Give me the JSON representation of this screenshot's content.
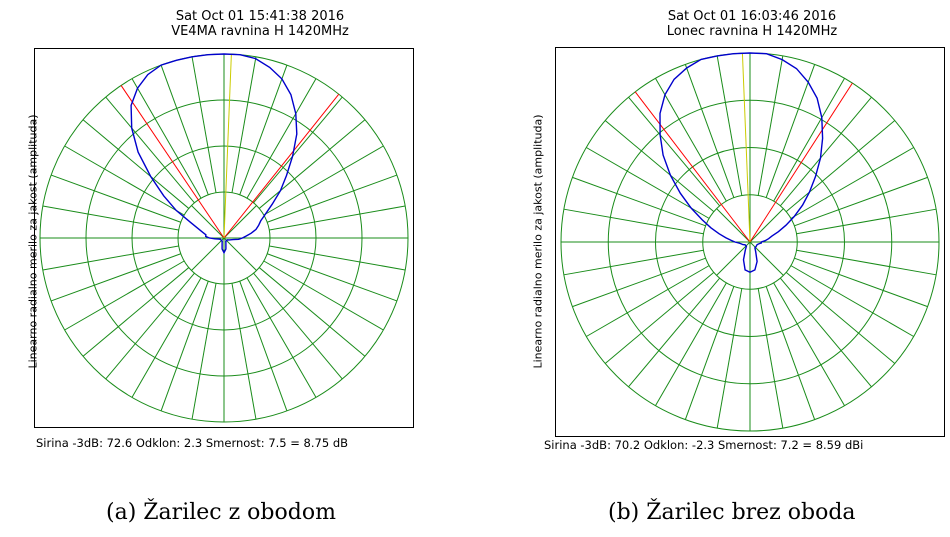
{
  "chart_data": [
    {
      "type": "polar",
      "title_line1": "Sat Oct 01 15:41:38 2016",
      "title_line2": "VE4MA ravnina H 1420MHz",
      "ylabel": "Linearno radialno merilo za jakost (amplituda)",
      "stats": "Sirina -3dB: 72.6    Odklon: 2.3    Smernost:   7.5 =  8.75 dB",
      "beamwidth_deg": 72.6,
      "offset_deg": 2.3,
      "directivity": 7.5,
      "directivity_db": 8.75,
      "caption": "(a) Žarilec z obodom",
      "rings": 4,
      "spokes_deg": 10,
      "colors": {
        "grid": "#1a8c1a",
        "pattern": "#0000cc",
        "beam": "#ff0000",
        "center": "#cccc00"
      },
      "pattern": {
        "angles": [
          -180,
          -170,
          -160,
          -150,
          -140,
          -130,
          -120,
          -110,
          -100,
          -95,
          -90,
          -85,
          -80,
          -75,
          -70,
          -65,
          -60,
          -55,
          -50,
          -45,
          -40,
          -35,
          -30,
          -25,
          -20,
          -15,
          -10,
          -5,
          0,
          5,
          10,
          15,
          20,
          25,
          30,
          35,
          40,
          45,
          50,
          55,
          60,
          65,
          70,
          75,
          80,
          85,
          90,
          95,
          100,
          110,
          120,
          130,
          140,
          150,
          160,
          170,
          180
        ],
        "values": [
          0.08,
          0.06,
          0.03,
          0.02,
          0.02,
          0.02,
          0.02,
          0.02,
          0.03,
          0.05,
          0.08,
          0.1,
          0.1,
          0.12,
          0.15,
          0.2,
          0.3,
          0.4,
          0.52,
          0.66,
          0.78,
          0.88,
          0.94,
          0.98,
          1.0,
          1.0,
          1.0,
          1.0,
          1.0,
          1.0,
          0.99,
          0.96,
          0.92,
          0.86,
          0.78,
          0.69,
          0.58,
          0.48,
          0.4,
          0.32,
          0.26,
          0.22,
          0.2,
          0.18,
          0.15,
          0.12,
          0.1,
          0.08,
          0.05,
          0.03,
          0.02,
          0.02,
          0.02,
          0.02,
          0.03,
          0.06,
          0.08
        ]
      }
    },
    {
      "type": "polar",
      "title_line1": "Sat Oct 01 16:03:46 2016",
      "title_line2": "Lonec ravnina H 1420MHz",
      "ylabel": "Linearno radialno merilo za jakost (amplituda)",
      "stats": "Sirina -3dB: 70.2    Odklon: -2.3    Smernost:   7.2 =  8.59 dBi",
      "beamwidth_deg": 70.2,
      "offset_deg": -2.3,
      "directivity": 7.2,
      "directivity_db": 8.59,
      "caption": "(b) Žarilec brez oboda",
      "rings": 4,
      "spokes_deg": 10,
      "colors": {
        "grid": "#1a8c1a",
        "pattern": "#0000cc",
        "beam": "#ff0000",
        "center": "#cccc00"
      },
      "pattern": {
        "angles": [
          -180,
          -170,
          -160,
          -150,
          -140,
          -130,
          -120,
          -110,
          -100,
          -95,
          -90,
          -85,
          -80,
          -75,
          -70,
          -65,
          -60,
          -55,
          -50,
          -45,
          -40,
          -35,
          -30,
          -25,
          -20,
          -15,
          -10,
          -5,
          0,
          5,
          10,
          15,
          20,
          25,
          30,
          35,
          40,
          45,
          50,
          55,
          60,
          65,
          70,
          75,
          80,
          85,
          90,
          95,
          100,
          110,
          120,
          130,
          140,
          150,
          160,
          170,
          180
        ],
        "values": [
          0.16,
          0.15,
          0.1,
          0.05,
          0.03,
          0.03,
          0.03,
          0.04,
          0.05,
          0.06,
          0.08,
          0.1,
          0.13,
          0.17,
          0.22,
          0.28,
          0.36,
          0.45,
          0.55,
          0.65,
          0.74,
          0.83,
          0.9,
          0.95,
          0.98,
          1.0,
          1.0,
          1.0,
          1.0,
          1.0,
          0.98,
          0.95,
          0.9,
          0.84,
          0.76,
          0.67,
          0.58,
          0.49,
          0.41,
          0.34,
          0.27,
          0.21,
          0.16,
          0.12,
          0.1,
          0.08,
          0.06,
          0.06,
          0.05,
          0.04,
          0.04,
          0.04,
          0.04,
          0.06,
          0.11,
          0.15,
          0.16
        ]
      }
    }
  ]
}
